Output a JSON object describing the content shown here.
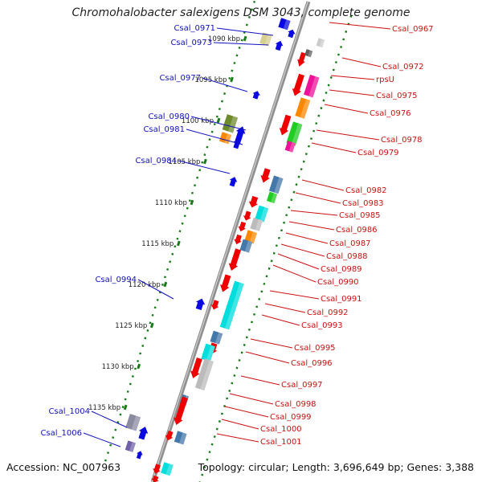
{
  "title": "Chromohalobacter salexigens DSM 3043, complete genome",
  "accession_label": "Accession: NC_007963",
  "topology_label": "Topology: circular; Length: 3,696,649 bp; Genes: 3,388",
  "colors": {
    "reverse_label": "#1010c0",
    "forward_label": "#cc1010",
    "backbone": "#909090",
    "tick": "#1a7a1a",
    "reverse_gene": "#0a0ae0",
    "forward_gene": "#ee0000"
  },
  "scale_kbp": [
    1090,
    1095,
    1100,
    1105,
    1110,
    1115,
    1120,
    1125,
    1130,
    1135
  ],
  "scale_labels": [
    "1090 kbp",
    "1095 kbp",
    "1100 kbp",
    "1105 kbp",
    "1110 kbp",
    "1115 kbp",
    "1120 kbp",
    "1125 kbp",
    "1130 kbp",
    "1135 kbp"
  ],
  "left_labels": [
    "Csal_0971",
    "Csal_0973",
    "Csal_0977",
    "Csal_0980",
    "Csal_0981",
    "Csal_0984",
    "Csal_0994",
    "Csal_1004",
    "Csal_1006"
  ],
  "right_labels": [
    "Csal_0967",
    "Csal_0972",
    "rpsU",
    "Csal_0975",
    "Csal_0976",
    "Csal_0978",
    "Csal_0979",
    "Csal_0982",
    "Csal_0983",
    "Csal_0985",
    "Csal_0986",
    "Csal_0987",
    "Csal_0988",
    "Csal_0989",
    "Csal_0990",
    "Csal_0991",
    "Csal_0992",
    "Csal_0993",
    "Csal_0995",
    "Csal_0996",
    "Csal_0997",
    "Csal_0998",
    "Csal_0999",
    "Csal_1000",
    "Csal_1001"
  ]
}
